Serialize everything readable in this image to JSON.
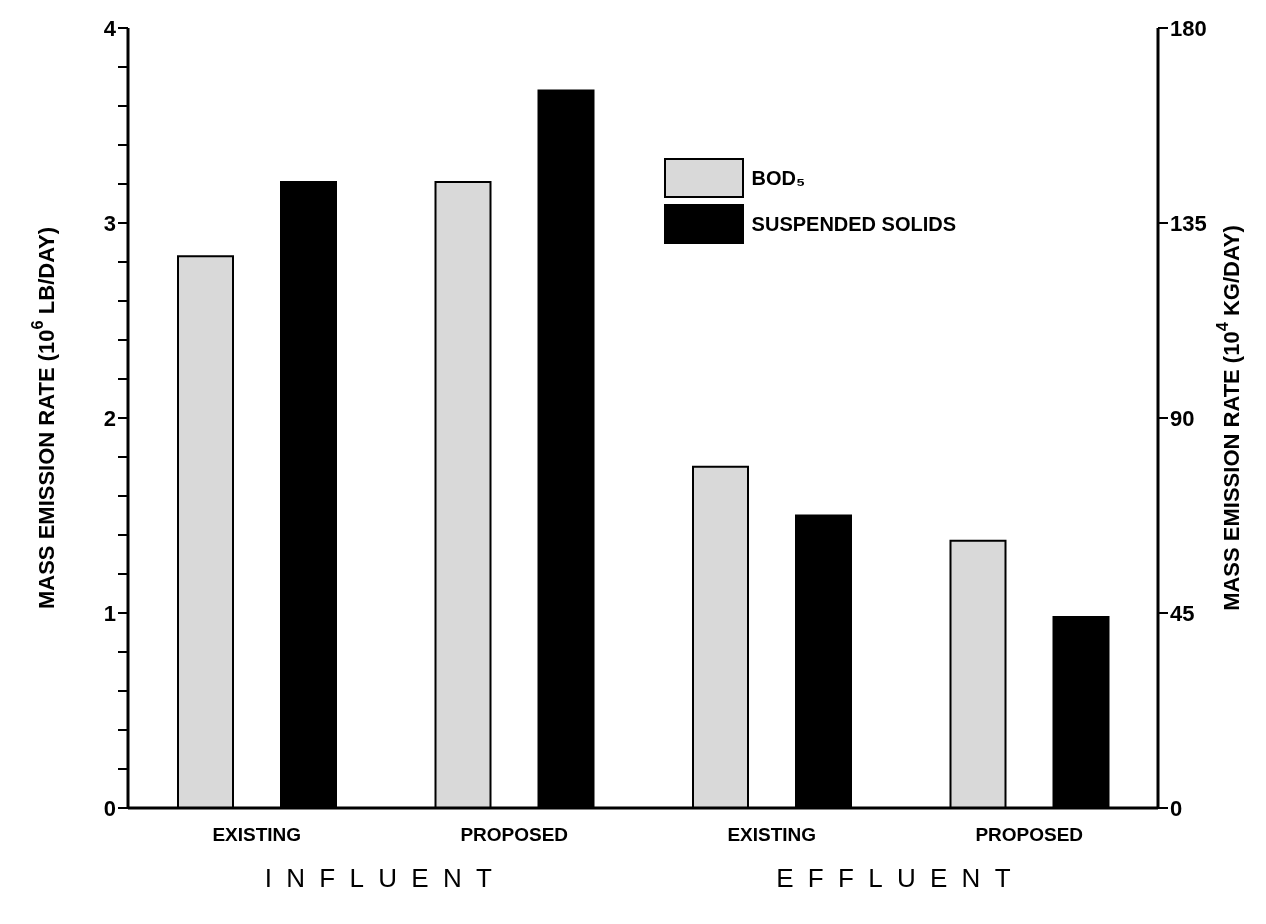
{
  "chart_data": {
    "type": "bar",
    "categories": [
      "EXISTING",
      "PROPOSED",
      "EXISTING",
      "PROPOSED"
    ],
    "series": [
      {
        "name": "BOD₅",
        "color": "#d9d9d9",
        "values": [
          2.83,
          3.21,
          1.75,
          1.37
        ]
      },
      {
        "name": "SUSPENDED SOLIDS",
        "color": "#000000",
        "values": [
          3.21,
          3.68,
          1.5,
          0.98
        ]
      }
    ],
    "ylabel": "MASS EMISSION RATE (10$^{6}$ LB/DAY)",
    "y2label": "MASS EMISSION RATE (10$^{4}$ KG/DAY)",
    "ylim": [
      0,
      4
    ],
    "yticks": [
      0,
      {
        "value": 0.2,
        "label": null
      },
      {
        "value": 0.4,
        "label": null
      },
      {
        "value": 0.6,
        "label": null
      },
      {
        "value": 0.8,
        "label": null
      },
      1,
      {
        "value": 1.2,
        "label": null
      },
      {
        "value": 1.4,
        "label": null
      },
      {
        "value": 1.6,
        "label": null
      },
      {
        "value": 1.8,
        "label": null
      },
      2,
      {
        "value": 2.2,
        "label": null
      },
      {
        "value": 2.4,
        "label": null
      },
      {
        "value": 2.6,
        "label": null
      },
      {
        "value": 2.8,
        "label": null
      },
      3,
      {
        "value": 3.2,
        "label": null
      },
      {
        "value": 3.4,
        "label": null
      },
      {
        "value": 3.6,
        "label": null
      },
      {
        "value": 3.8,
        "label": null
      },
      4
    ],
    "y2lim": [
      0,
      180
    ],
    "y2ticks": [
      0,
      45,
      90,
      135,
      180
    ],
    "annotations": [
      "INFLUENT",
      "EFFLUENT"
    ],
    "legend": "top right"
  }
}
